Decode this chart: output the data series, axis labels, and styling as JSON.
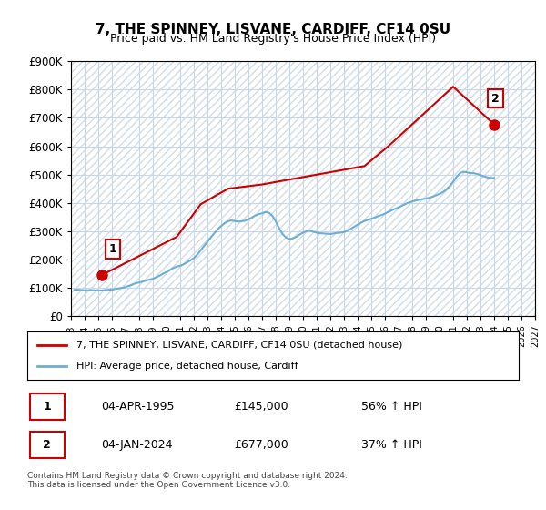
{
  "title": "7, THE SPINNEY, LISVANE, CARDIFF, CF14 0SU",
  "subtitle": "Price paid vs. HM Land Registry's House Price Index (HPI)",
  "hpi_color": "#6baed6",
  "price_color": "#cc0000",
  "point1_label": "1",
  "point2_label": "2",
  "point1_date": "04-APR-1995",
  "point1_price": 145000,
  "point1_hpi_pct": "56% ↑ HPI",
  "point2_date": "04-JAN-2024",
  "point2_price": 677000,
  "point2_hpi_pct": "37% ↑ HPI",
  "legend_line1": "7, THE SPINNEY, LISVANE, CARDIFF, CF14 0SU (detached house)",
  "legend_line2": "HPI: Average price, detached house, Cardiff",
  "footer": "Contains HM Land Registry data © Crown copyright and database right 2024.\nThis data is licensed under the Open Government Licence v3.0.",
  "ylim": [
    0,
    900000
  ],
  "yticks": [
    0,
    100000,
    200000,
    300000,
    400000,
    500000,
    600000,
    700000,
    800000,
    900000
  ],
  "ytick_labels": [
    "£0",
    "£100K",
    "£200K",
    "£300K",
    "£400K",
    "£500K",
    "£600K",
    "£700K",
    "£800K",
    "£900K"
  ],
  "hpi_data": {
    "years": [
      1993.25,
      1993.5,
      1993.75,
      1994.0,
      1994.25,
      1994.5,
      1994.75,
      1995.0,
      1995.25,
      1995.5,
      1995.75,
      1996.0,
      1996.25,
      1996.5,
      1996.75,
      1997.0,
      1997.25,
      1997.5,
      1997.75,
      1998.0,
      1998.25,
      1998.5,
      1998.75,
      1999.0,
      1999.25,
      1999.5,
      1999.75,
      2000.0,
      2000.25,
      2000.5,
      2000.75,
      2001.0,
      2001.25,
      2001.5,
      2001.75,
      2002.0,
      2002.25,
      2002.5,
      2002.75,
      2003.0,
      2003.25,
      2003.5,
      2003.75,
      2004.0,
      2004.25,
      2004.5,
      2004.75,
      2005.0,
      2005.25,
      2005.5,
      2005.75,
      2006.0,
      2006.25,
      2006.5,
      2006.75,
      2007.0,
      2007.25,
      2007.5,
      2007.75,
      2008.0,
      2008.25,
      2008.5,
      2008.75,
      2009.0,
      2009.25,
      2009.5,
      2009.75,
      2010.0,
      2010.25,
      2010.5,
      2010.75,
      2011.0,
      2011.25,
      2011.5,
      2011.75,
      2012.0,
      2012.25,
      2012.5,
      2012.75,
      2013.0,
      2013.25,
      2013.5,
      2013.75,
      2014.0,
      2014.25,
      2014.5,
      2014.75,
      2015.0,
      2015.25,
      2015.5,
      2015.75,
      2016.0,
      2016.25,
      2016.5,
      2016.75,
      2017.0,
      2017.25,
      2017.5,
      2017.75,
      2018.0,
      2018.25,
      2018.5,
      2018.75,
      2019.0,
      2019.25,
      2019.5,
      2019.75,
      2020.0,
      2020.25,
      2020.5,
      2020.75,
      2021.0,
      2021.25,
      2021.5,
      2021.75,
      2022.0,
      2022.25,
      2022.5,
      2022.75,
      2023.0,
      2023.25,
      2023.5,
      2023.75,
      2024.0
    ],
    "values": [
      93000,
      93500,
      92000,
      91000,
      91500,
      92000,
      91000,
      90500,
      91000,
      92000,
      93000,
      94000,
      96000,
      98000,
      100000,
      103000,
      107000,
      112000,
      116000,
      119000,
      122000,
      126000,
      129000,
      132000,
      137000,
      143000,
      150000,
      156000,
      163000,
      170000,
      175000,
      178000,
      183000,
      190000,
      197000,
      205000,
      217000,
      232000,
      248000,
      263000,
      278000,
      293000,
      307000,
      318000,
      328000,
      335000,
      338000,
      336000,
      334000,
      335000,
      337000,
      342000,
      348000,
      355000,
      360000,
      363000,
      368000,
      365000,
      355000,
      335000,
      310000,
      290000,
      278000,
      272000,
      275000,
      280000,
      288000,
      295000,
      300000,
      302000,
      298000,
      295000,
      293000,
      292000,
      291000,
      290000,
      292000,
      294000,
      295000,
      297000,
      302000,
      308000,
      316000,
      323000,
      330000,
      336000,
      340000,
      344000,
      348000,
      353000,
      357000,
      362000,
      368000,
      374000,
      379000,
      384000,
      390000,
      396000,
      401000,
      405000,
      408000,
      411000,
      413000,
      415000,
      418000,
      422000,
      427000,
      432000,
      438000,
      447000,
      460000,
      475000,
      492000,
      505000,
      510000,
      508000,
      505000,
      505000,
      502000,
      498000,
      494000,
      490000,
      488000,
      488000
    ]
  },
  "price_data": {
    "years": [
      1995.25,
      2000.75,
      2002.5,
      2004.5,
      2007.0,
      2014.5,
      2016.25,
      2021.0,
      2024.0
    ],
    "values": [
      145000,
      280000,
      395000,
      450000,
      465000,
      530000,
      600000,
      810000,
      677000
    ]
  },
  "point1_x": 1995.25,
  "point1_y": 145000,
  "point2_x": 2024.0,
  "point2_y": 677000,
  "xmin": 1993,
  "xmax": 2027,
  "xtick_years": [
    1993,
    1994,
    1995,
    1996,
    1997,
    1998,
    1999,
    2000,
    2001,
    2002,
    2003,
    2004,
    2005,
    2006,
    2007,
    2008,
    2009,
    2010,
    2011,
    2012,
    2013,
    2014,
    2015,
    2016,
    2017,
    2018,
    2019,
    2020,
    2021,
    2022,
    2023,
    2024,
    2025,
    2026,
    2027
  ],
  "background_color": "#ffffff",
  "grid_color": "#c8d8e8",
  "hatch_color": "#d0dde8"
}
